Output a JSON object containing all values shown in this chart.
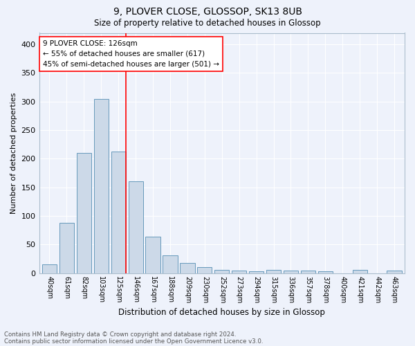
{
  "title1": "9, PLOVER CLOSE, GLOSSOP, SK13 8UB",
  "title2": "Size of property relative to detached houses in Glossop",
  "xlabel": "Distribution of detached houses by size in Glossop",
  "ylabel": "Number of detached properties",
  "bin_labels": [
    "40sqm",
    "61sqm",
    "82sqm",
    "103sqm",
    "125sqm",
    "146sqm",
    "167sqm",
    "188sqm",
    "209sqm",
    "230sqm",
    "252sqm",
    "273sqm",
    "294sqm",
    "315sqm",
    "336sqm",
    "357sqm",
    "378sqm",
    "400sqm",
    "421sqm",
    "442sqm",
    "463sqm"
  ],
  "bin_values": [
    15,
    88,
    210,
    305,
    213,
    160,
    64,
    31,
    18,
    10,
    6,
    4,
    3,
    5,
    4,
    4,
    3,
    0,
    5,
    0,
    4
  ],
  "bar_color": "#ccd9e8",
  "bar_edge_color": "#6699bb",
  "red_line_bin_index": 4,
  "annotation_line1": "9 PLOVER CLOSE: 126sqm",
  "annotation_line2": "← 55% of detached houses are smaller (617)",
  "annotation_line3": "45% of semi-detached houses are larger (501) →",
  "annotation_box_color": "white",
  "annotation_box_edge_color": "red",
  "footnote1": "Contains HM Land Registry data © Crown copyright and database right 2024.",
  "footnote2": "Contains public sector information licensed under the Open Government Licence v3.0.",
  "ylim": [
    0,
    420
  ],
  "background_color": "#eef2fb",
  "grid_color": "white"
}
